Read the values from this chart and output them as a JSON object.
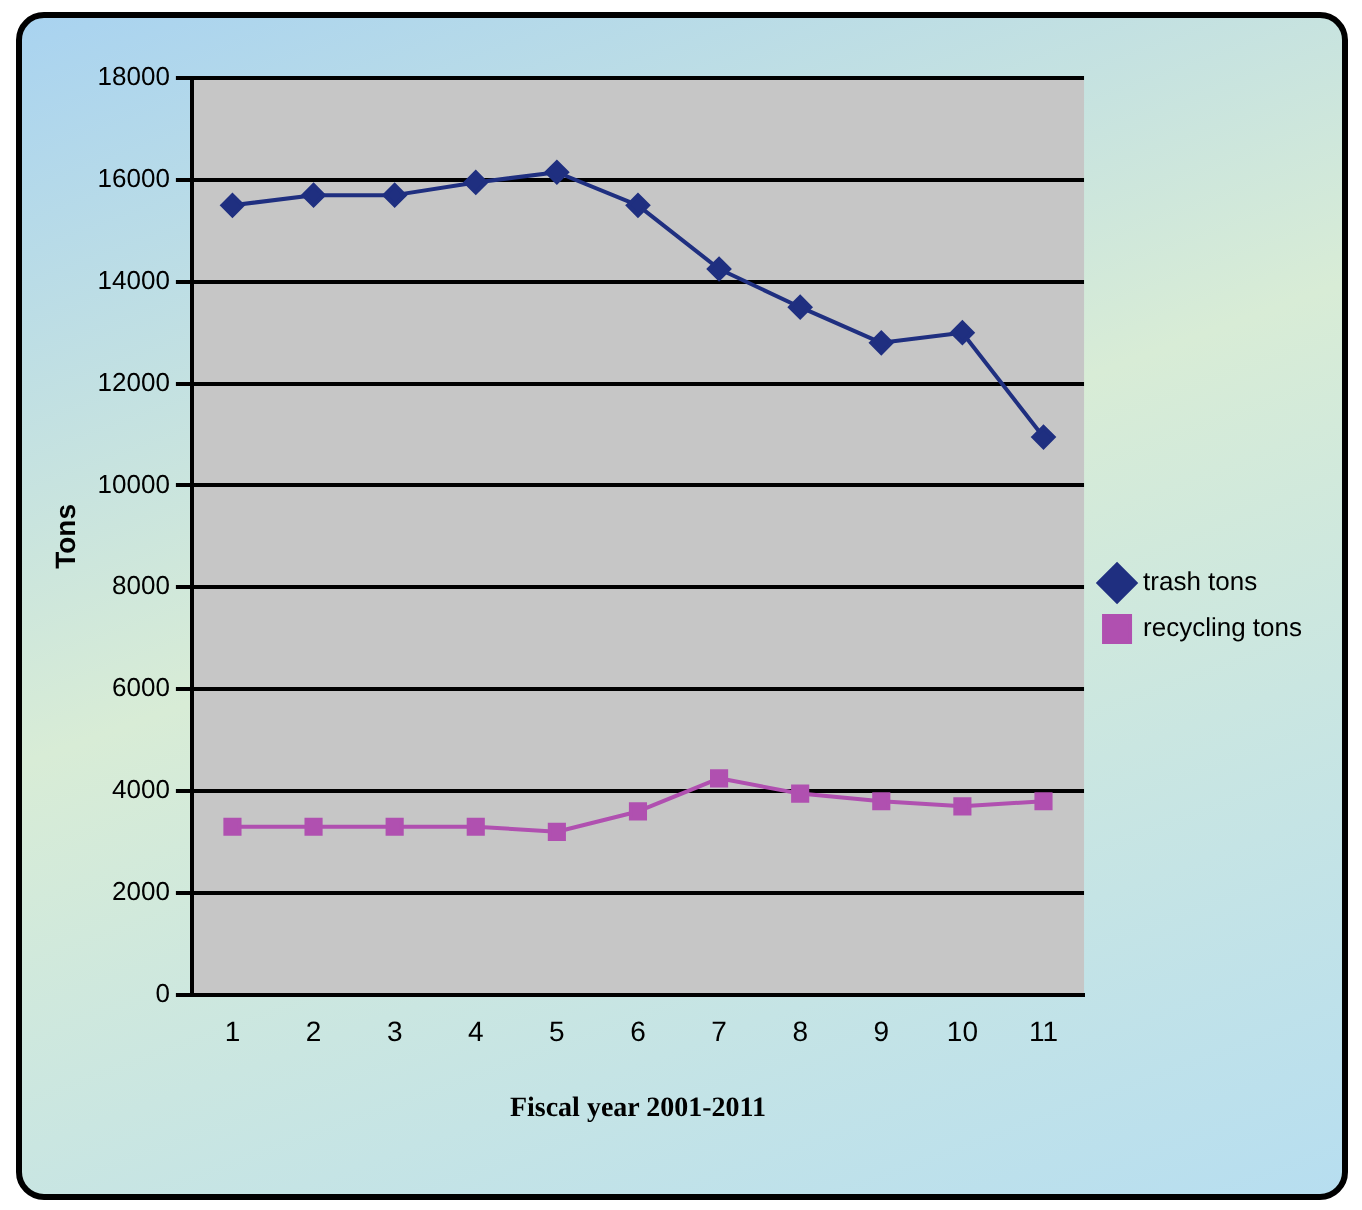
{
  "chart_data": {
    "type": "line",
    "xlabel": "Fiscal year 2001-2011",
    "ylabel": "Tons",
    "categories": [
      "1",
      "2",
      "3",
      "4",
      "5",
      "6",
      "7",
      "8",
      "9",
      "10",
      "11"
    ],
    "series": [
      {
        "name": "trash tons",
        "color": "#1f2f80",
        "marker": "diamond",
        "values": [
          15500,
          15700,
          15700,
          15950,
          16150,
          15500,
          14250,
          13500,
          12800,
          13000,
          10950
        ]
      },
      {
        "name": "recycling tons",
        "color": "#b050b0",
        "marker": "square",
        "values": [
          3300,
          3300,
          3300,
          3300,
          3200,
          3600,
          4250,
          3950,
          3800,
          3700,
          3800
        ]
      }
    ],
    "ylim": [
      0,
      18000
    ],
    "yticks": [
      0,
      2000,
      4000,
      6000,
      8000,
      10000,
      12000,
      14000,
      16000,
      18000
    ],
    "grid": "y",
    "legend": "right"
  }
}
